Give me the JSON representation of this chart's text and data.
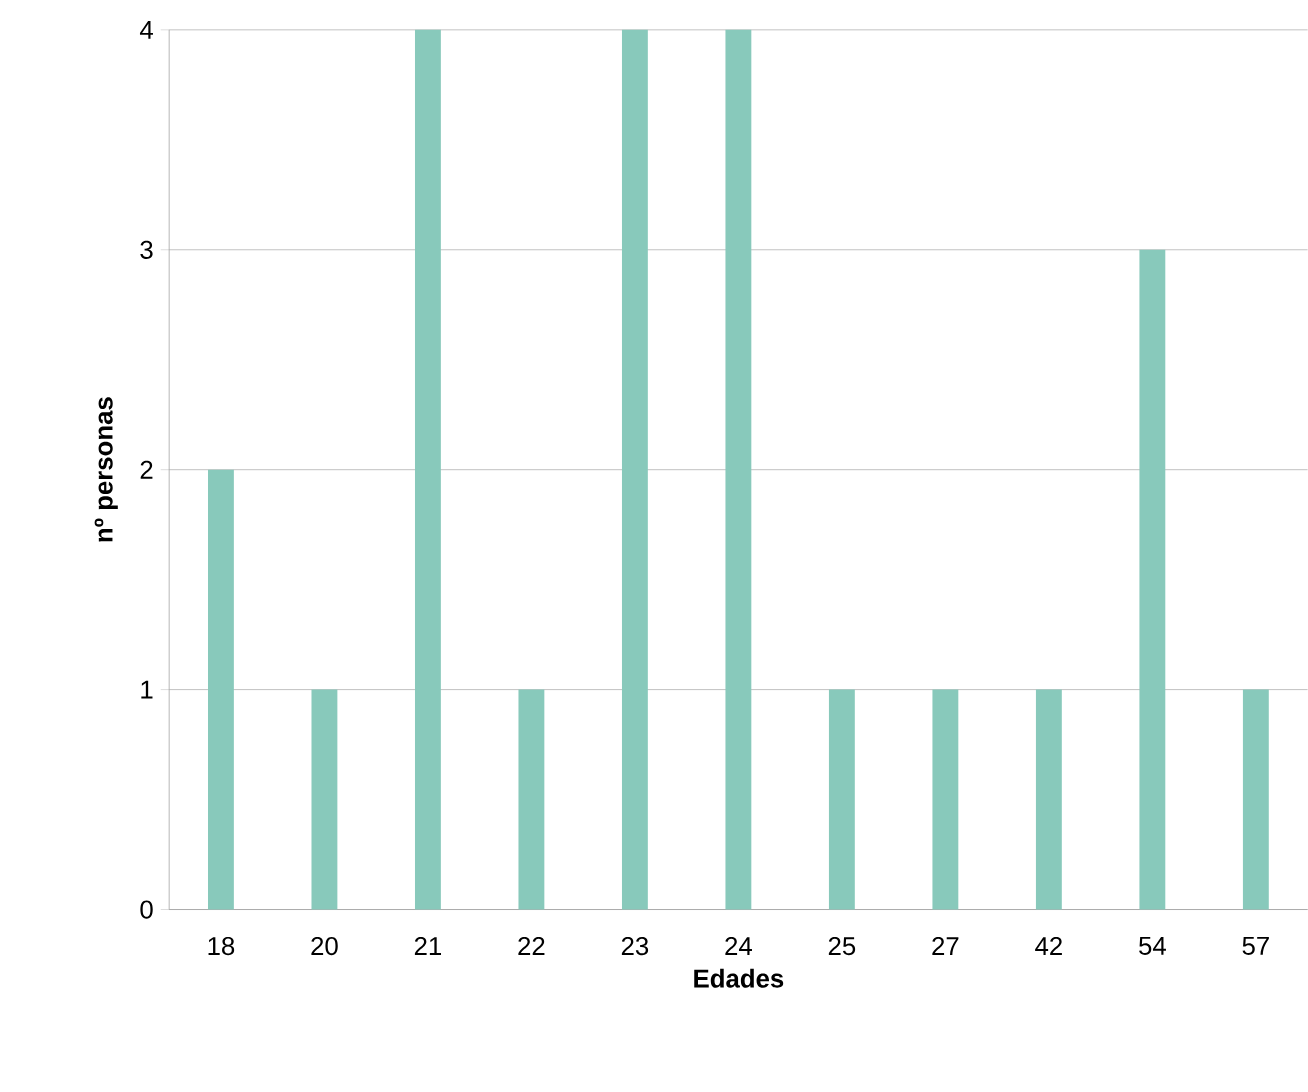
{
  "chart_data": {
    "type": "bar",
    "xlabel": "Edades",
    "ylabel": "nº personas",
    "categories": [
      "18",
      "20",
      "21",
      "22",
      "23",
      "24",
      "25",
      "27",
      "42",
      "54",
      "57"
    ],
    "values": [
      2,
      1,
      4,
      1,
      4,
      4,
      1,
      1,
      1,
      3,
      1
    ],
    "color": "#88c9bb",
    "ylim": [
      0,
      4
    ],
    "yticks": [
      0,
      1,
      2,
      3,
      4
    ],
    "grid": "y"
  }
}
